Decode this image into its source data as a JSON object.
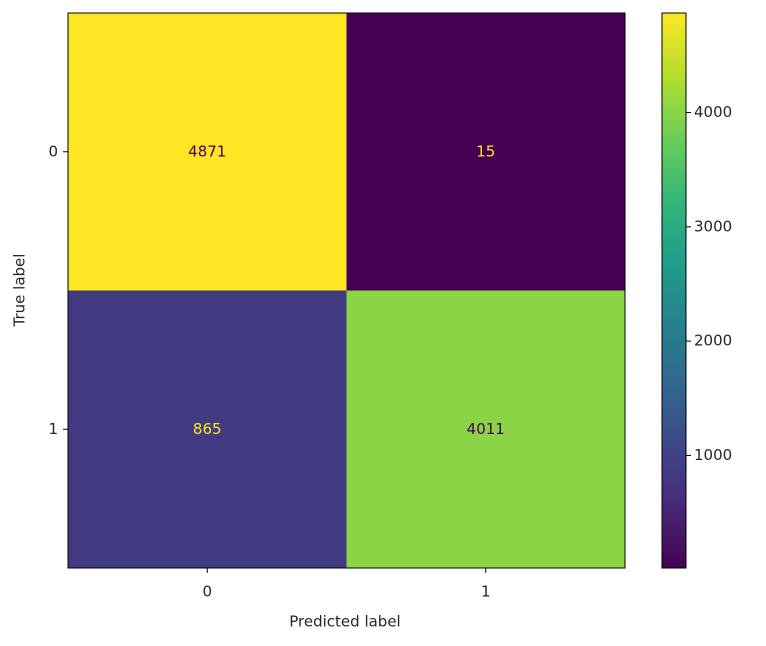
{
  "chart_data": {
    "type": "heatmap",
    "x_label": "Predicted label",
    "y_label": "True label",
    "x_categories": [
      "0",
      "1"
    ],
    "y_categories": [
      "0",
      "1"
    ],
    "values": [
      [
        4871,
        15
      ],
      [
        865,
        4011
      ]
    ],
    "colormap": "viridis",
    "zlim": [
      15,
      4871
    ],
    "zticks": [
      1000,
      2000,
      3000,
      4000
    ]
  }
}
